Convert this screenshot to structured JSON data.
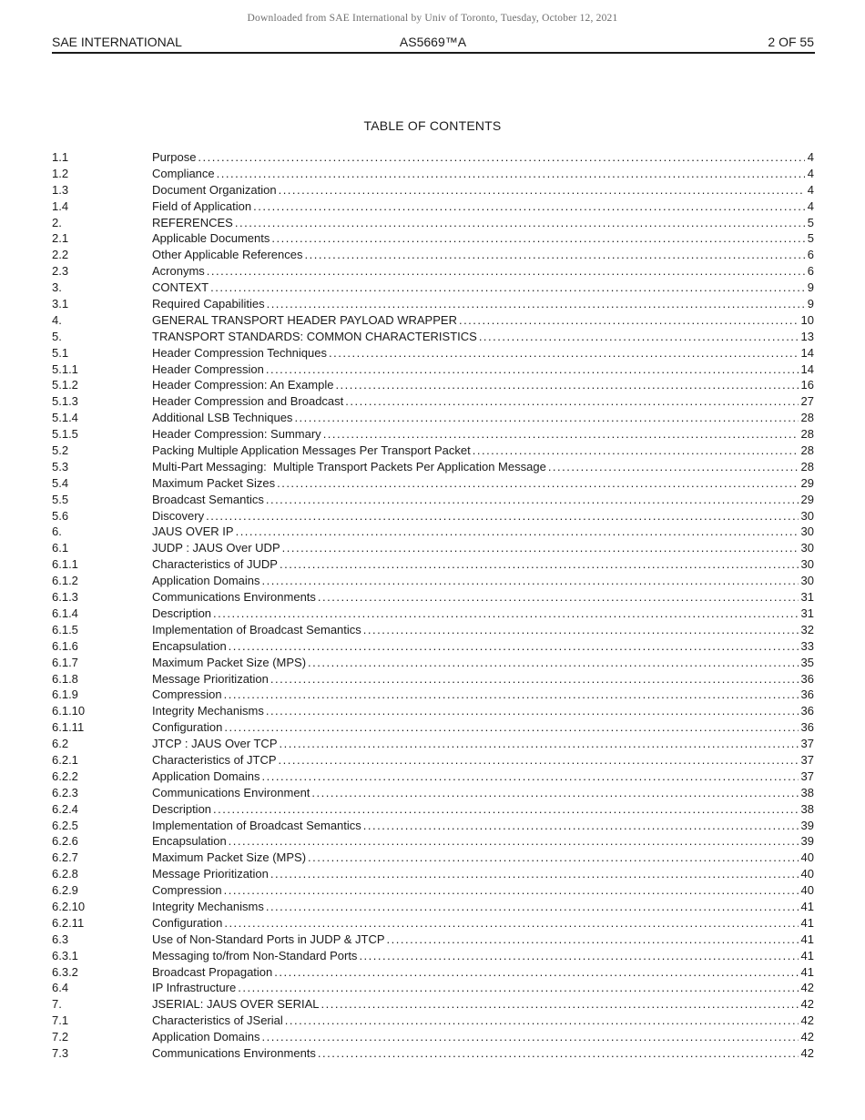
{
  "watermark": "Downloaded from SAE International by Univ of Toronto, Tuesday, October 12, 2021",
  "header": {
    "left": "SAE INTERNATIONAL",
    "center": "AS5669™A",
    "right": "2 OF 55"
  },
  "toc": {
    "title": "TABLE OF CONTENTS",
    "entries": [
      {
        "num": "1.1",
        "title": "Purpose",
        "page": "4"
      },
      {
        "num": "1.2",
        "title": "Compliance",
        "page": "4"
      },
      {
        "num": "1.3",
        "title": "Document Organization",
        "page": "4"
      },
      {
        "num": "1.4",
        "title": "Field of Application",
        "page": "4"
      },
      {
        "num": "2.",
        "title": "REFERENCES",
        "page": "5"
      },
      {
        "num": "2.1",
        "title": "Applicable Documents",
        "page": "5"
      },
      {
        "num": "2.2",
        "title": "Other Applicable References",
        "page": "6"
      },
      {
        "num": "2.3",
        "title": "Acronyms",
        "page": "6"
      },
      {
        "num": "3.",
        "title": "CONTEXT",
        "page": "9"
      },
      {
        "num": "3.1",
        "title": "Required Capabilities",
        "page": "9"
      },
      {
        "num": "4.",
        "title": "GENERAL TRANSPORT HEADER PAYLOAD WRAPPER",
        "page": "10"
      },
      {
        "num": "5.",
        "title": "TRANSPORT STANDARDS: COMMON CHARACTERISTICS",
        "page": "13"
      },
      {
        "num": "5.1",
        "title": "Header Compression Techniques",
        "page": "14"
      },
      {
        "num": "5.1.1",
        "title": "Header Compression",
        "page": "14"
      },
      {
        "num": "5.1.2",
        "title": "Header Compression: An Example",
        "page": "16"
      },
      {
        "num": "5.1.3",
        "title": "Header Compression and Broadcast",
        "page": "27"
      },
      {
        "num": "5.1.4",
        "title": "Additional LSB Techniques",
        "page": "28"
      },
      {
        "num": "5.1.5",
        "title": "Header Compression: Summary",
        "page": "28"
      },
      {
        "num": "5.2",
        "title": "Packing Multiple Application Messages Per Transport Packet",
        "page": "28"
      },
      {
        "num": "5.3",
        "title": "Multi-Part Messaging:  Multiple Transport Packets Per Application Message",
        "page": "28"
      },
      {
        "num": "5.4",
        "title": "Maximum Packet Sizes",
        "page": "29"
      },
      {
        "num": "5.5",
        "title": "Broadcast Semantics",
        "page": "29"
      },
      {
        "num": "5.6",
        "title": "Discovery",
        "page": "30"
      },
      {
        "num": "6.",
        "title": "JAUS OVER IP",
        "page": "30"
      },
      {
        "num": "6.1",
        "title": "JUDP : JAUS Over UDP",
        "page": "30"
      },
      {
        "num": "6.1.1",
        "title": "Characteristics of JUDP",
        "page": "30"
      },
      {
        "num": "6.1.2",
        "title": "Application Domains",
        "page": "30"
      },
      {
        "num": "6.1.3",
        "title": "Communications Environments",
        "page": "31"
      },
      {
        "num": "6.1.4",
        "title": "Description",
        "page": "31"
      },
      {
        "num": "6.1.5",
        "title": "Implementation of Broadcast Semantics",
        "page": "32"
      },
      {
        "num": "6.1.6",
        "title": "Encapsulation",
        "page": "33"
      },
      {
        "num": "6.1.7",
        "title": "Maximum Packet Size (MPS)",
        "page": "35"
      },
      {
        "num": "6.1.8",
        "title": "Message Prioritization",
        "page": "36"
      },
      {
        "num": "6.1.9",
        "title": "Compression",
        "page": "36"
      },
      {
        "num": "6.1.10",
        "title": "Integrity Mechanisms",
        "page": "36"
      },
      {
        "num": "6.1.11",
        "title": "Configuration",
        "page": "36"
      },
      {
        "num": "6.2",
        "title": "JTCP : JAUS Over TCP",
        "page": "37"
      },
      {
        "num": "6.2.1",
        "title": "Characteristics of JTCP",
        "page": "37"
      },
      {
        "num": "6.2.2",
        "title": "Application Domains",
        "page": "37"
      },
      {
        "num": "6.2.3",
        "title": "Communications Environment",
        "page": "38"
      },
      {
        "num": "6.2.4",
        "title": "Description",
        "page": "38"
      },
      {
        "num": "6.2.5",
        "title": "Implementation of Broadcast Semantics",
        "page": "39"
      },
      {
        "num": "6.2.6",
        "title": "Encapsulation",
        "page": "39"
      },
      {
        "num": "6.2.7",
        "title": "Maximum Packet Size (MPS)",
        "page": "40"
      },
      {
        "num": "6.2.8",
        "title": "Message Prioritization",
        "page": "40"
      },
      {
        "num": "6.2.9",
        "title": "Compression",
        "page": "40"
      },
      {
        "num": "6.2.10",
        "title": "Integrity Mechanisms",
        "page": "41"
      },
      {
        "num": "6.2.11",
        "title": "Configuration",
        "page": "41"
      },
      {
        "num": "6.3",
        "title": "Use of Non-Standard Ports in JUDP & JTCP",
        "page": "41"
      },
      {
        "num": "6.3.1",
        "title": "Messaging to/from Non-Standard Ports",
        "page": "41"
      },
      {
        "num": "6.3.2",
        "title": "Broadcast Propagation",
        "page": "41"
      },
      {
        "num": "6.4",
        "title": "IP Infrastructure",
        "page": "42"
      },
      {
        "num": "7.",
        "title": "JSERIAL: JAUS OVER SERIAL",
        "page": "42"
      },
      {
        "num": "7.1",
        "title": "Characteristics of JSerial",
        "page": "42"
      },
      {
        "num": "7.2",
        "title": "Application Domains",
        "page": "42"
      },
      {
        "num": "7.3",
        "title": "Communications Environments",
        "page": "42"
      }
    ]
  }
}
